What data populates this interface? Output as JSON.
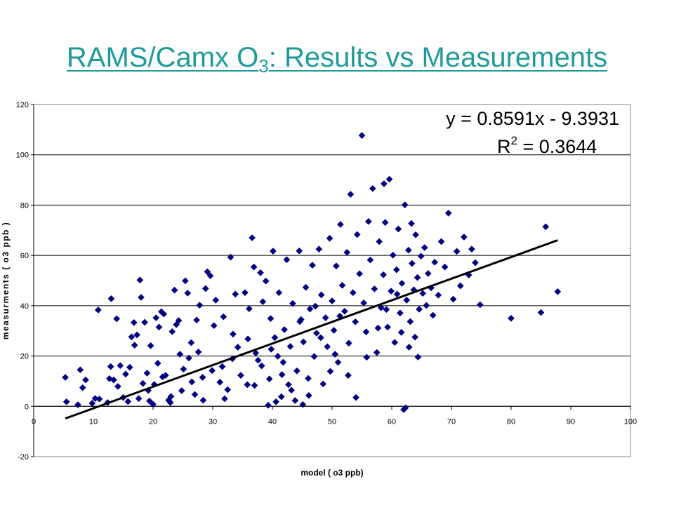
{
  "title": {
    "prefix": "RAMS/Camx  O",
    "subscript": "3",
    "suffix": ": Results vs Measurements",
    "color": "#1f9a9a"
  },
  "chart_data": {
    "type": "scatter",
    "title": "",
    "xlabel": "model  ( o3 ppb)",
    "ylabel": "measurments  ( o3 ppb )",
    "xlim": [
      0,
      100
    ],
    "ylim": [
      -20,
      120
    ],
    "x_ticks": [
      "0",
      "10",
      "20",
      "30",
      "40",
      "50",
      "60",
      "70",
      "80",
      "90",
      "100"
    ],
    "y_ticks": [
      "-20",
      "0",
      "20",
      "40",
      "60",
      "80",
      "100",
      "120"
    ],
    "grid": "horizontal",
    "marker": "diamond",
    "marker_color": "#000080",
    "trendline": {
      "slope": 0.8591,
      "intercept": -9.3931,
      "x_range": [
        5.3,
        87.8
      ],
      "color": "#000000",
      "equation_label": "y = 0.8591x - 9.3931",
      "r2_prefix": "R",
      "r2_exponent": "2",
      "r2_suffix": " = 0.3644"
    },
    "points": [
      [
        5.3,
        11.5
      ],
      [
        5.5,
        1.8
      ],
      [
        7.8,
        14.5
      ],
      [
        8.2,
        7.4
      ],
      [
        8.7,
        10.5
      ],
      [
        7.4,
        0.6
      ],
      [
        9.8,
        1.2
      ],
      [
        10.3,
        3.1
      ],
      [
        11.0,
        2.9
      ],
      [
        10.8,
        38.3
      ],
      [
        12.4,
        1.5
      ],
      [
        12.7,
        11.0
      ],
      [
        12.9,
        15.8
      ],
      [
        13.0,
        42.8
      ],
      [
        13.4,
        10.5
      ],
      [
        13.9,
        34.8
      ],
      [
        14.1,
        7.9
      ],
      [
        14.5,
        16.2
      ],
      [
        15.0,
        3.5
      ],
      [
        15.4,
        12.8
      ],
      [
        15.8,
        1.9
      ],
      [
        16.1,
        15.5
      ],
      [
        16.4,
        27.6
      ],
      [
        16.8,
        33.3
      ],
      [
        16.9,
        24.3
      ],
      [
        17.3,
        28.4
      ],
      [
        17.6,
        3.1
      ],
      [
        17.8,
        50.2
      ],
      [
        18.0,
        43.3
      ],
      [
        18.6,
        33.4
      ],
      [
        19.0,
        13.2
      ],
      [
        19.4,
        2.1
      ],
      [
        19.6,
        24.1
      ],
      [
        20.0,
        0.8
      ],
      [
        20.2,
        8.7
      ],
      [
        20.5,
        35.2
      ],
      [
        21.0,
        31.5
      ],
      [
        21.4,
        37.6
      ],
      [
        21.8,
        36.7
      ],
      [
        22.1,
        12.3
      ],
      [
        22.6,
        2.5
      ],
      [
        22.9,
        1.5
      ],
      [
        23.2,
        29.7
      ],
      [
        23.6,
        46.2
      ],
      [
        23.9,
        32.5
      ],
      [
        24.3,
        34.1
      ],
      [
        24.8,
        6.2
      ],
      [
        25.1,
        14.8
      ],
      [
        25.4,
        49.9
      ],
      [
        25.8,
        45.0
      ],
      [
        26.0,
        19.2
      ],
      [
        26.4,
        25.3
      ],
      [
        27.0,
        4.7
      ],
      [
        27.3,
        34.3
      ],
      [
        27.8,
        40.2
      ],
      [
        28.3,
        11.5
      ],
      [
        28.8,
        46.8
      ],
      [
        29.1,
        53.5
      ],
      [
        29.6,
        51.9
      ],
      [
        30.2,
        32.1
      ],
      [
        30.5,
        42.2
      ],
      [
        31.2,
        9.6
      ],
      [
        31.6,
        15.8
      ],
      [
        32.0,
        3.0
      ],
      [
        32.5,
        6.6
      ],
      [
        33.0,
        59.3
      ],
      [
        33.4,
        28.7
      ],
      [
        33.8,
        44.6
      ],
      [
        34.2,
        23.5
      ],
      [
        34.7,
        12.3
      ],
      [
        35.4,
        45.2
      ],
      [
        35.8,
        8.6
      ],
      [
        36.1,
        38.8
      ],
      [
        36.6,
        67.0
      ],
      [
        36.9,
        55.4
      ],
      [
        37.2,
        21.2
      ],
      [
        37.6,
        18.3
      ],
      [
        38.0,
        53.1
      ],
      [
        38.4,
        41.6
      ],
      [
        38.9,
        49.8
      ],
      [
        39.3,
        0.4
      ],
      [
        39.5,
        10.9
      ],
      [
        39.7,
        34.9
      ],
      [
        40.1,
        61.7
      ],
      [
        40.4,
        27.3
      ],
      [
        40.6,
        1.8
      ],
      [
        40.9,
        19.9
      ],
      [
        41.1,
        45.2
      ],
      [
        41.5,
        3.8
      ],
      [
        41.8,
        17.5
      ],
      [
        42.0,
        30.5
      ],
      [
        42.4,
        58.3
      ],
      [
        42.7,
        8.6
      ],
      [
        43.0,
        23.8
      ],
      [
        43.4,
        40.9
      ],
      [
        43.8,
        2.3
      ],
      [
        44.1,
        14.1
      ],
      [
        44.5,
        61.8
      ],
      [
        44.8,
        34.5
      ],
      [
        45.2,
        25.6
      ],
      [
        45.6,
        47.3
      ],
      [
        46.0,
        11.1
      ],
      [
        46.3,
        38.7
      ],
      [
        46.7,
        56.1
      ],
      [
        47.0,
        19.8
      ],
      [
        47.4,
        29.1
      ],
      [
        47.8,
        62.5
      ],
      [
        48.2,
        44.3
      ],
      [
        48.5,
        8.9
      ],
      [
        48.9,
        35.2
      ],
      [
        49.2,
        23.7
      ],
      [
        49.6,
        66.8
      ],
      [
        50.0,
        41.9
      ],
      [
        50.3,
        30.2
      ],
      [
        50.7,
        55.8
      ],
      [
        51.0,
        17.5
      ],
      [
        51.4,
        72.3
      ],
      [
        51.7,
        48.1
      ],
      [
        52.1,
        37.8
      ],
      [
        52.5,
        61.2
      ],
      [
        52.8,
        25.1
      ],
      [
        53.1,
        84.3
      ],
      [
        53.5,
        45.2
      ],
      [
        53.9,
        33.6
      ],
      [
        54.2,
        68.3
      ],
      [
        54.6,
        52.7
      ],
      [
        55.0,
        107.7
      ],
      [
        55.3,
        41.1
      ],
      [
        55.7,
        29.6
      ],
      [
        56.1,
        73.5
      ],
      [
        56.4,
        58.2
      ],
      [
        56.8,
        86.6
      ],
      [
        57.1,
        46.7
      ],
      [
        57.5,
        21.4
      ],
      [
        57.9,
        65.5
      ],
      [
        58.2,
        39.2
      ],
      [
        58.6,
        52.3
      ],
      [
        58.9,
        73.1
      ],
      [
        59.3,
        31.5
      ],
      [
        59.6,
        90.3
      ],
      [
        59.9,
        45.8
      ],
      [
        60.2,
        60.1
      ],
      [
        60.5,
        25.4
      ],
      [
        60.8,
        54.3
      ],
      [
        61.1,
        70.5
      ],
      [
        61.4,
        37.1
      ],
      [
        61.7,
        48.9
      ],
      [
        62.0,
        -1.3
      ],
      [
        62.2,
        80.1
      ],
      [
        62.5,
        42.2
      ],
      [
        62.8,
        62.1
      ],
      [
        63.1,
        33.7
      ],
      [
        63.4,
        56.8
      ],
      [
        63.7,
        46.3
      ],
      [
        64.0,
        68.2
      ],
      [
        64.3,
        51.2
      ],
      [
        64.6,
        38.6
      ],
      [
        64.9,
        59.7
      ],
      [
        65.2,
        44.9
      ],
      [
        65.5,
        63.1
      ],
      [
        66.1,
        52.8
      ],
      [
        66.6,
        47.1
      ],
      [
        67.2,
        57.3
      ],
      [
        67.8,
        44.2
      ],
      [
        68.3,
        65.5
      ],
      [
        68.9,
        55.4
      ],
      [
        69.5,
        76.8
      ],
      [
        70.3,
        42.6
      ],
      [
        70.9,
        61.6
      ],
      [
        71.5,
        47.9
      ],
      [
        72.1,
        67.3
      ],
      [
        72.9,
        52.2
      ],
      [
        73.4,
        62.5
      ],
      [
        74.0,
        57.1
      ],
      [
        74.8,
        40.4
      ],
      [
        80.0,
        35.0
      ],
      [
        85.0,
        37.3
      ],
      [
        85.8,
        71.4
      ],
      [
        87.8,
        45.6
      ],
      [
        62.3,
        -0.6
      ],
      [
        58.7,
        88.5
      ],
      [
        41.6,
        12.6
      ],
      [
        43.2,
        6.4
      ],
      [
        39.8,
        22.7
      ],
      [
        38.2,
        16.1
      ],
      [
        44.6,
        33.7
      ],
      [
        37.0,
        8.3
      ],
      [
        35.9,
        26.8
      ],
      [
        33.3,
        18.9
      ],
      [
        31.8,
        35.6
      ],
      [
        29.9,
        14.2
      ],
      [
        28.4,
        2.4
      ],
      [
        27.6,
        21.6
      ],
      [
        26.5,
        9.7
      ],
      [
        24.5,
        20.7
      ],
      [
        23.0,
        3.9
      ],
      [
        21.6,
        11.7
      ],
      [
        20.8,
        17.1
      ],
      [
        19.2,
        6.3
      ],
      [
        18.3,
        9.1
      ],
      [
        55.8,
        19.5
      ],
      [
        54.0,
        3.5
      ],
      [
        52.7,
        12.3
      ],
      [
        51.3,
        35.9
      ],
      [
        50.5,
        20.7
      ],
      [
        49.7,
        13.9
      ],
      [
        48.1,
        27.3
      ],
      [
        47.2,
        39.8
      ],
      [
        46.1,
        4.3
      ],
      [
        45.1,
        0.7
      ],
      [
        57.7,
        31.1
      ],
      [
        59.1,
        38.5
      ],
      [
        60.9,
        44.6
      ],
      [
        63.9,
        27.5
      ],
      [
        65.8,
        40.1
      ],
      [
        66.9,
        36.2
      ],
      [
        61.6,
        29.4
      ],
      [
        62.9,
        23.5
      ],
      [
        64.4,
        19.6
      ],
      [
        63.3,
        72.7
      ]
    ]
  }
}
